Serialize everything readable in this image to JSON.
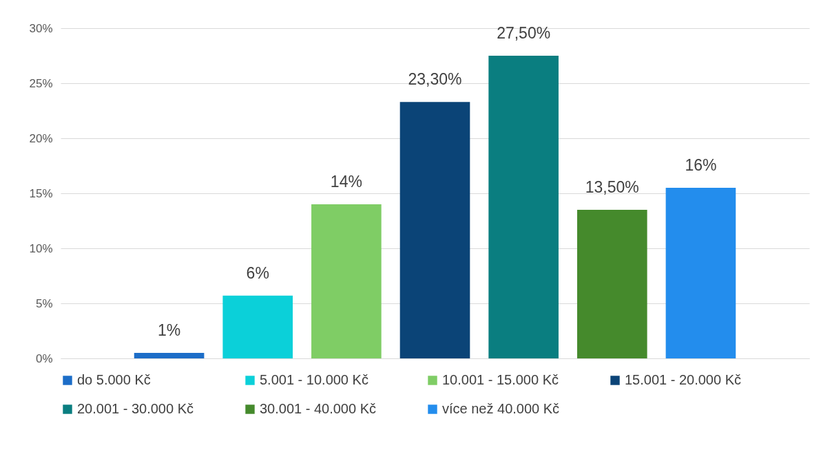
{
  "chart_data": {
    "type": "bar",
    "categories": [
      null
    ],
    "series": [
      {
        "name": "do 5.000 Kč",
        "color": "#1c6dc8",
        "values": [
          0.5
        ],
        "value_labels": [
          "1%"
        ]
      },
      {
        "name": "5.001 - 10.000 Kč",
        "color": "#0bd0d9",
        "values": [
          5.7
        ],
        "value_labels": [
          "6%"
        ]
      },
      {
        "name": "10.001 - 15.000 Kč",
        "color": "#7fcd65",
        "values": [
          14
        ],
        "value_labels": [
          "14%"
        ]
      },
      {
        "name": "15.001 - 20.000 Kč",
        "color": "#0b4477",
        "values": [
          23.3
        ],
        "value_labels": [
          "23,30%"
        ]
      },
      {
        "name": "20.001 - 30.000 Kč",
        "color": "#0a7e80",
        "values": [
          27.5
        ],
        "value_labels": [
          "27,50%"
        ]
      },
      {
        "name": "30.001 - 40.000 Kč",
        "color": "#458a2c",
        "values": [
          13.5
        ],
        "value_labels": [
          "13,50%"
        ]
      },
      {
        "name": "více než 40.000 Kč",
        "color": "#238ded",
        "values": [
          15.5
        ],
        "value_labels": [
          "16%"
        ]
      }
    ],
    "ylim": [
      0,
      30
    ],
    "yticks": [
      {
        "value": 0,
        "label": "0%"
      },
      {
        "value": 5,
        "label": "5%"
      },
      {
        "value": 10,
        "label": "10%"
      },
      {
        "value": 15,
        "label": "15%"
      },
      {
        "value": 20,
        "label": "20%"
      },
      {
        "value": 25,
        "label": "25%"
      },
      {
        "value": 30,
        "label": "30%"
      }
    ],
    "grid": "y",
    "legend": "bottom",
    "tick_labels": "y"
  }
}
